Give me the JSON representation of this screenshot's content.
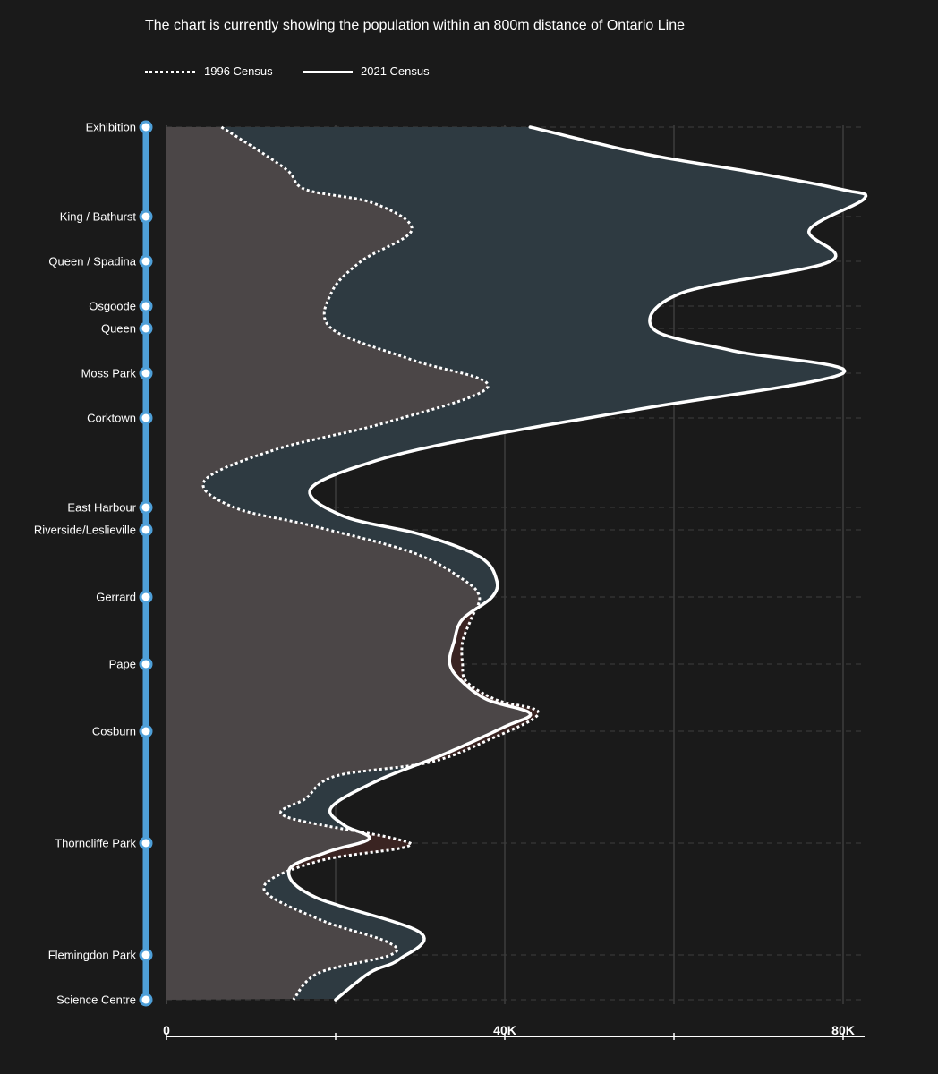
{
  "title": "The chart is currently showing the population within an 800m distance of Ontario Line",
  "legend": {
    "series_1996": "1996 Census",
    "series_2021": "2021 Census"
  },
  "colors": {
    "background": "#1a1a1a",
    "line_route": "#4e9fd8",
    "fill_1996": "#4b4647",
    "fill_2021_excess": "#2e3a41",
    "fill_1996_excess": "#3a2422",
    "line": "#ffffff",
    "grid": "#555555"
  },
  "chart_data": {
    "type": "area",
    "orientation": "vertical-stations",
    "stations": [
      "Exhibition",
      "King / Bathurst",
      "Queen / Spadina",
      "Osgoode",
      "Queen",
      "Moss Park",
      "Corktown",
      "East Harbour",
      "Riverside/Leslieville",
      "Gerrard",
      "Pape",
      "Cosburn",
      "Thorncliffe Park",
      "Flemingdon Park",
      "Science Centre"
    ],
    "station_positions_km": [
      0.0,
      1.0,
      1.5,
      2.0,
      2.25,
      2.75,
      3.25,
      4.25,
      4.5,
      5.25,
      6.0,
      6.75,
      8.0,
      9.25,
      9.75
    ],
    "xlim": [
      0,
      80000
    ],
    "xticks": [
      0,
      20000,
      40000,
      60000,
      80000
    ],
    "xtick_labels": [
      "0",
      "",
      "40K",
      "",
      "80K"
    ],
    "grid": true,
    "legend_position": "top-left",
    "series": [
      {
        "name": "1996 Census",
        "style": "dotted",
        "points": [
          [
            0.0,
            6500
          ],
          [
            0.3,
            11500
          ],
          [
            0.5,
            14500
          ],
          [
            0.7,
            16500
          ],
          [
            0.85,
            24500
          ],
          [
            1.15,
            29000
          ],
          [
            1.5,
            23000
          ],
          [
            1.85,
            19500
          ],
          [
            2.25,
            19500
          ],
          [
            2.6,
            29000
          ],
          [
            2.9,
            38000
          ],
          [
            3.3,
            26000
          ],
          [
            3.6,
            13000
          ],
          [
            3.95,
            4500
          ],
          [
            4.25,
            8000
          ],
          [
            4.45,
            17000
          ],
          [
            4.75,
            29000
          ],
          [
            5.05,
            35000
          ],
          [
            5.25,
            37000
          ],
          [
            5.5,
            36000
          ],
          [
            5.75,
            35000
          ],
          [
            6.0,
            35000
          ],
          [
            6.2,
            35500
          ],
          [
            6.4,
            39000
          ],
          [
            6.55,
            44000
          ],
          [
            6.85,
            38000
          ],
          [
            7.1,
            31000
          ],
          [
            7.25,
            20000
          ],
          [
            7.5,
            16500
          ],
          [
            7.7,
            14000
          ],
          [
            7.95,
            27000
          ],
          [
            8.05,
            28000
          ],
          [
            8.2,
            18000
          ],
          [
            8.5,
            11500
          ],
          [
            8.85,
            18000
          ],
          [
            9.1,
            26000
          ],
          [
            9.25,
            26500
          ],
          [
            9.45,
            18000
          ],
          [
            9.75,
            15000
          ]
        ]
      },
      {
        "name": "2021 Census",
        "style": "solid",
        "points": [
          [
            0.0,
            43000
          ],
          [
            0.3,
            56500
          ],
          [
            0.5,
            69000
          ],
          [
            0.7,
            80000
          ],
          [
            0.8,
            82500
          ],
          [
            1.15,
            76000
          ],
          [
            1.5,
            78500
          ],
          [
            1.85,
            61000
          ],
          [
            2.25,
            57500
          ],
          [
            2.5,
            67000
          ],
          [
            2.75,
            80000
          ],
          [
            3.15,
            56000
          ],
          [
            3.5,
            35000
          ],
          [
            3.75,
            24000
          ],
          [
            4.05,
            17000
          ],
          [
            4.35,
            21000
          ],
          [
            4.55,
            30000
          ],
          [
            4.8,
            37000
          ],
          [
            5.05,
            39000
          ],
          [
            5.25,
            38500
          ],
          [
            5.5,
            35000
          ],
          [
            5.75,
            34000
          ],
          [
            6.0,
            33500
          ],
          [
            6.2,
            35000
          ],
          [
            6.4,
            38000
          ],
          [
            6.55,
            43000
          ],
          [
            6.7,
            40000
          ],
          [
            7.0,
            33000
          ],
          [
            7.3,
            25000
          ],
          [
            7.6,
            19500
          ],
          [
            7.8,
            21000
          ],
          [
            7.95,
            24000
          ],
          [
            8.1,
            19000
          ],
          [
            8.3,
            14500
          ],
          [
            8.6,
            17500
          ],
          [
            9.0,
            30000
          ],
          [
            9.3,
            27500
          ],
          [
            9.45,
            24000
          ],
          [
            9.75,
            20000
          ]
        ]
      }
    ]
  }
}
